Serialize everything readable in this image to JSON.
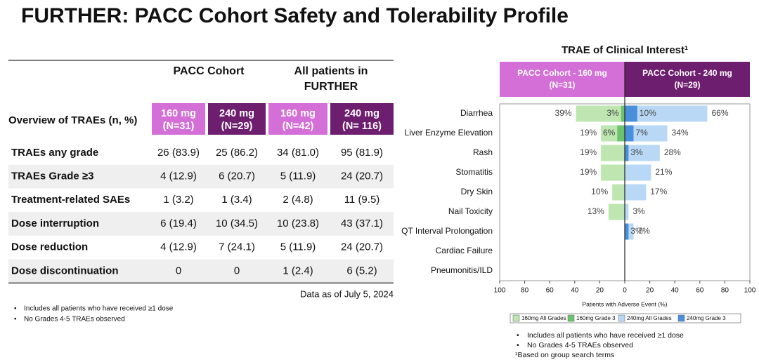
{
  "title": "FURTHER: PACC Cohort Safety and Tolerability Profile",
  "table": {
    "row_header": "Overview of TRAEs (n, %)",
    "groups": [
      {
        "lines": [
          "PACC Cohort"
        ]
      },
      {
        "lines": [
          "All patients in",
          "FURTHER"
        ]
      }
    ],
    "columns": [
      [
        "160 mg",
        "(N=31)"
      ],
      [
        "240 mg",
        "(N=29)"
      ],
      [
        "160 mg",
        "(N=42)"
      ],
      [
        "240 mg",
        "(N= 116)"
      ]
    ],
    "rows": [
      [
        "TRAEs any grade",
        "26 (83.9)",
        "25 (86.2)",
        "34 (81.0)",
        "95 (81.9)"
      ],
      [
        "TRAEs Grade ≥3",
        "4 (12.9)",
        "6 (20.7)",
        "5 (11.9)",
        "24 (20.7)"
      ],
      [
        "Treatment-related SAEs",
        "1 (3.2)",
        "1 (3.4)",
        "2 (4.8)",
        "11 (9.5)"
      ],
      [
        "Dose interruption",
        "6 (19.4)",
        "10 (34.5)",
        "10 (23.8)",
        "43 (37.1)"
      ],
      [
        "Dose reduction",
        "4 (12.9)",
        "7 (24.1)",
        "5 (11.9)",
        "24 (20.7)"
      ],
      [
        "Dose discontinuation",
        "0",
        "0",
        "1 (2.4)",
        "6 (5.2)"
      ]
    ],
    "note": "Data as of July 5, 2024"
  },
  "left_footnotes": [
    "Includes all patients who have received ≥1 dose",
    "No Grades 4-5 TRAEs observed"
  ],
  "chart_data": {
    "type": "butterfly",
    "title": "TRAE of Clinical Interest¹",
    "side_headers": [
      {
        "lines": [
          "PACC Cohort - 160 mg",
          "(N=31)"
        ],
        "color": "#d46fd8"
      },
      {
        "lines": [
          "PACC Cohort - 240 mg",
          "(N=29)"
        ],
        "color": "#6e1e6e"
      }
    ],
    "categories": [
      "Diarrhea",
      "Liver Enzyme Elevation",
      "Rash",
      "Stomatitis",
      "Dry Skin",
      "Nail Toxicity",
      "QT Interval Prolongation",
      "Cardiac Failure",
      "Pneumonitis/ILD"
    ],
    "series": [
      {
        "name": "160mg All Grades",
        "color": "#bfe6b0",
        "side": "left",
        "values": [
          39,
          19,
          19,
          19,
          10,
          13,
          null,
          null,
          null
        ],
        "value_labels": [
          "39%",
          "19%",
          "19%",
          "19%",
          "10%",
          "13%",
          null,
          null,
          null
        ]
      },
      {
        "name": "160mg Grade 3",
        "color": "#6cc36b",
        "side": "left",
        "values": [
          3,
          6,
          null,
          null,
          null,
          null,
          null,
          null,
          null
        ],
        "value_labels": [
          "3%",
          "6%",
          null,
          null,
          null,
          null,
          null,
          null,
          null
        ]
      },
      {
        "name": "240mg All Grades",
        "color": "#b9d8f6",
        "side": "right",
        "values": [
          66,
          34,
          28,
          21,
          17,
          3,
          7,
          null,
          null
        ],
        "value_labels": [
          "66%",
          "34%",
          "28%",
          "21%",
          "17%",
          "3%",
          "7%",
          null,
          null
        ]
      },
      {
        "name": "240mg Grade 3",
        "color": "#4a8fdc",
        "side": "right",
        "values": [
          10,
          7,
          3,
          null,
          null,
          null,
          3,
          null,
          null
        ],
        "value_labels": [
          "10%",
          "7%",
          "3%",
          null,
          null,
          null,
          "3%",
          null,
          null
        ]
      }
    ],
    "xlim": [
      -100,
      100
    ],
    "xticks": [
      {
        "value": -100,
        "label": "100"
      },
      {
        "value": -80,
        "label": "80"
      },
      {
        "value": -60,
        "label": "60"
      },
      {
        "value": -40,
        "label": "40"
      },
      {
        "value": -20,
        "label": "20"
      },
      0,
      20,
      40,
      60,
      80,
      100
    ],
    "xlabel": "Patients with Adverse Event (%)"
  },
  "right_footnotes": [
    "Includes all patients who have received ≥1 dose",
    "No Grades 4-5 TRAEs observed"
  ],
  "right_source_note": "¹Based on group search terms"
}
